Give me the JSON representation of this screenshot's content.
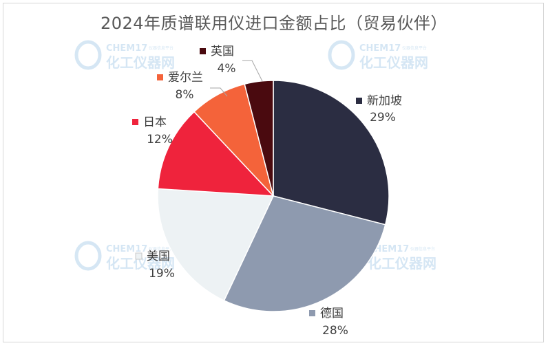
{
  "chart_data": {
    "type": "pie",
    "title": "2024年质谱联用仪进口金额占比（贸易伙伴）",
    "start_angle_deg": 0,
    "direction": "clockwise",
    "slices": [
      {
        "label": "新加坡",
        "value": 29,
        "value_label": "29%",
        "color": "#2b2d42"
      },
      {
        "label": "德国",
        "value": 28,
        "value_label": "28%",
        "color": "#8e9aaf"
      },
      {
        "label": "美国",
        "value": 19,
        "value_label": "19%",
        "color": "#edf2f4"
      },
      {
        "label": "日本",
        "value": 12,
        "value_label": "12%",
        "color": "#ef233c"
      },
      {
        "label": "爱尔兰",
        "value": 8,
        "value_label": "8%",
        "color": "#f4633a"
      },
      {
        "label": "英国",
        "value": 4,
        "value_label": "4%",
        "color": "#4a0a0f"
      }
    ]
  },
  "watermark": {
    "brand": "CHEM17",
    "tagline": "仪器信息平台",
    "name": "化工仪器网"
  }
}
